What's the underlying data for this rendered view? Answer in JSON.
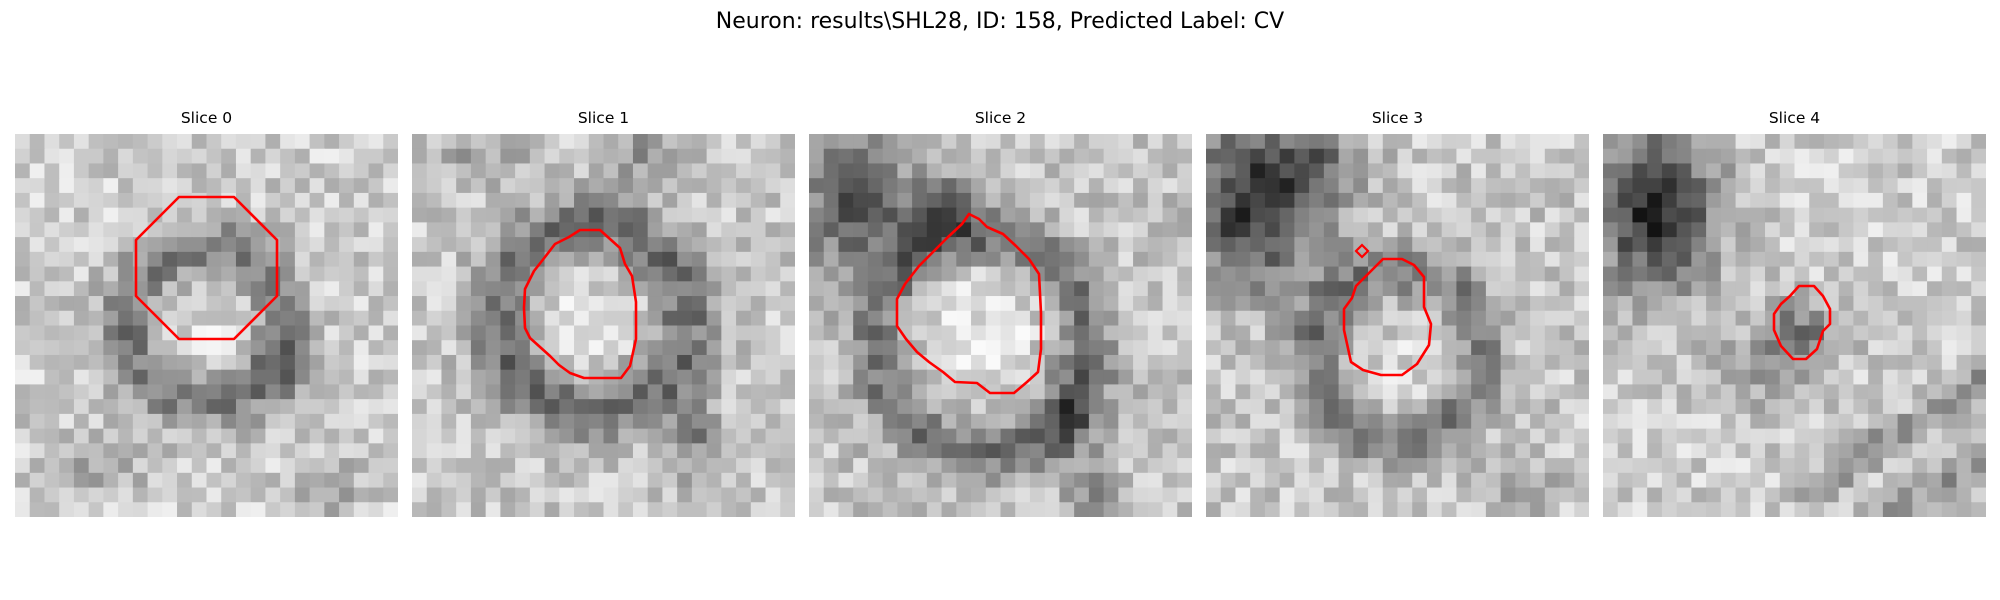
{
  "figure": {
    "suptitle": "Neuron: results\\SHL28, ID: 158, Predicted Label: CV",
    "contour_color": "#ff0000",
    "colormap": "gray",
    "panels": [
      {
        "title": "Slice 0",
        "image_description": "grayscale EM patch, light textured background with darker ring around bright center"
      },
      {
        "title": "Slice 1",
        "image_description": "grayscale EM patch, dark ring surrounding bright rounded interior"
      },
      {
        "title": "Slice 2",
        "image_description": "grayscale EM patch, dark blobs upper-left, bright central region"
      },
      {
        "title": "Slice 3",
        "image_description": "grayscale EM patch, very dark region upper-left, grey round body center"
      },
      {
        "title": "Slice 4",
        "image_description": "grayscale EM patch, very dark blob upper-left, small dark region center, dark diagonal band lower-right"
      }
    ]
  }
}
